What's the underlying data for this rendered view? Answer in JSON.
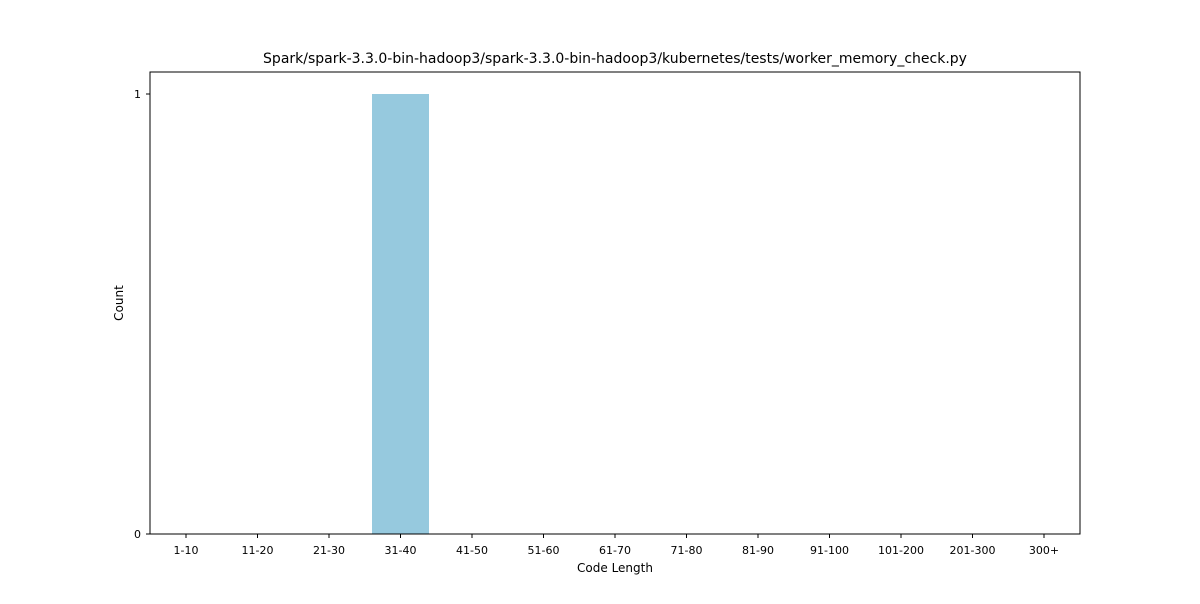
{
  "chart_data": {
    "type": "bar",
    "title": "Spark/spark-3.3.0-bin-hadoop3/spark-3.3.0-bin-hadoop3/kubernetes/tests/worker_memory_check.py",
    "xlabel": "Code Length",
    "ylabel": "Count",
    "categories": [
      "1-10",
      "11-20",
      "21-30",
      "31-40",
      "41-50",
      "51-60",
      "61-70",
      "71-80",
      "81-90",
      "91-100",
      "101-200",
      "201-300",
      "300+"
    ],
    "values": [
      0,
      0,
      0,
      1,
      0,
      0,
      0,
      0,
      0,
      0,
      0,
      0,
      0
    ],
    "ylim": [
      0,
      1
    ],
    "yticks": [
      0,
      1
    ],
    "grid": false,
    "bar_color": "#96c9de"
  }
}
